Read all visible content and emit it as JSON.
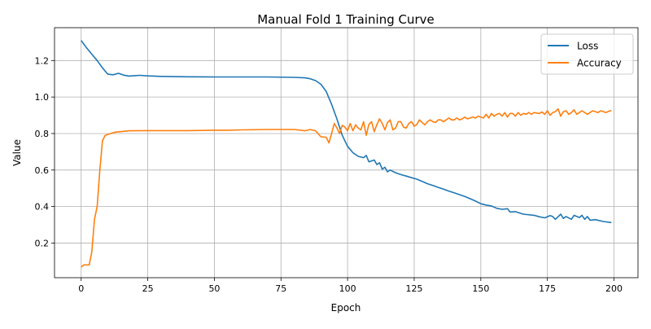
{
  "chart_data": {
    "type": "line",
    "title": "Manual Fold 1 Training Curve",
    "xlabel": "Epoch",
    "ylabel": "Value",
    "xlim": [
      -10,
      209
    ],
    "ylim": [
      0.01,
      1.38
    ],
    "xticks": [
      0,
      25,
      50,
      75,
      100,
      125,
      150,
      175,
      200
    ],
    "yticks": [
      0.2,
      0.4,
      0.6,
      0.8,
      1.0,
      1.2
    ],
    "ytick_labels": [
      "0.2",
      "0.4",
      "0.6",
      "0.8",
      "1.0",
      "1.2"
    ],
    "grid": true,
    "legend_position": "top-right",
    "series": [
      {
        "name": "Loss",
        "color": "#1f77b4",
        "points": [
          [
            0,
            1.31
          ],
          [
            2,
            1.27
          ],
          [
            4,
            1.235
          ],
          [
            6,
            1.2
          ],
          [
            8,
            1.16
          ],
          [
            10,
            1.125
          ],
          [
            12,
            1.122
          ],
          [
            14,
            1.13
          ],
          [
            16,
            1.12
          ],
          [
            18,
            1.115
          ],
          [
            20,
            1.117
          ],
          [
            22,
            1.119
          ],
          [
            25,
            1.116
          ],
          [
            30,
            1.113
          ],
          [
            35,
            1.112
          ],
          [
            40,
            1.111
          ],
          [
            50,
            1.11
          ],
          [
            60,
            1.11
          ],
          [
            70,
            1.11
          ],
          [
            80,
            1.108
          ],
          [
            84,
            1.105
          ],
          [
            86,
            1.1
          ],
          [
            88,
            1.09
          ],
          [
            90,
            1.07
          ],
          [
            92,
            1.03
          ],
          [
            94,
            0.96
          ],
          [
            96,
            0.88
          ],
          [
            98,
            0.79
          ],
          [
            100,
            0.73
          ],
          [
            102,
            0.695
          ],
          [
            104,
            0.675
          ],
          [
            106,
            0.668
          ],
          [
            107,
            0.68
          ],
          [
            108,
            0.645
          ],
          [
            110,
            0.655
          ],
          [
            111,
            0.63
          ],
          [
            112,
            0.64
          ],
          [
            113,
            0.605
          ],
          [
            114,
            0.615
          ],
          [
            115,
            0.59
          ],
          [
            116,
            0.6
          ],
          [
            118,
            0.585
          ],
          [
            120,
            0.575
          ],
          [
            122,
            0.567
          ],
          [
            124,
            0.558
          ],
          [
            126,
            0.55
          ],
          [
            128,
            0.538
          ],
          [
            130,
            0.525
          ],
          [
            132,
            0.515
          ],
          [
            134,
            0.505
          ],
          [
            136,
            0.495
          ],
          [
            138,
            0.485
          ],
          [
            140,
            0.475
          ],
          [
            142,
            0.465
          ],
          [
            144,
            0.455
          ],
          [
            146,
            0.443
          ],
          [
            148,
            0.43
          ],
          [
            150,
            0.415
          ],
          [
            152,
            0.408
          ],
          [
            154,
            0.403
          ],
          [
            156,
            0.39
          ],
          [
            158,
            0.385
          ],
          [
            160,
            0.388
          ],
          [
            161,
            0.37
          ],
          [
            163,
            0.372
          ],
          [
            166,
            0.358
          ],
          [
            170,
            0.352
          ],
          [
            172,
            0.344
          ],
          [
            174,
            0.338
          ],
          [
            176,
            0.35
          ],
          [
            177,
            0.345
          ],
          [
            178,
            0.33
          ],
          [
            180,
            0.358
          ],
          [
            181,
            0.335
          ],
          [
            182,
            0.345
          ],
          [
            184,
            0.33
          ],
          [
            185,
            0.352
          ],
          [
            187,
            0.34
          ],
          [
            188,
            0.352
          ],
          [
            189,
            0.33
          ],
          [
            190,
            0.345
          ],
          [
            191,
            0.325
          ],
          [
            193,
            0.328
          ],
          [
            196,
            0.318
          ],
          [
            199,
            0.312
          ]
        ]
      },
      {
        "name": "Accuracy",
        "color": "#ff7f0e",
        "points": [
          [
            0,
            0.068
          ],
          [
            1,
            0.08
          ],
          [
            3,
            0.08
          ],
          [
            4,
            0.15
          ],
          [
            5,
            0.33
          ],
          [
            6,
            0.4
          ],
          [
            7,
            0.6
          ],
          [
            8,
            0.76
          ],
          [
            9,
            0.79
          ],
          [
            11,
            0.8
          ],
          [
            13,
            0.808
          ],
          [
            16,
            0.812
          ],
          [
            18,
            0.815
          ],
          [
            25,
            0.816
          ],
          [
            40,
            0.816
          ],
          [
            50,
            0.818
          ],
          [
            55,
            0.818
          ],
          [
            60,
            0.82
          ],
          [
            70,
            0.822
          ],
          [
            80,
            0.822
          ],
          [
            84,
            0.815
          ],
          [
            86,
            0.822
          ],
          [
            88,
            0.815
          ],
          [
            90,
            0.782
          ],
          [
            92,
            0.78
          ],
          [
            93,
            0.748
          ],
          [
            94,
            0.8
          ],
          [
            95,
            0.855
          ],
          [
            96,
            0.83
          ],
          [
            97,
            0.8
          ],
          [
            98,
            0.845
          ],
          [
            99,
            0.835
          ],
          [
            100,
            0.815
          ],
          [
            101,
            0.855
          ],
          [
            102,
            0.815
          ],
          [
            103,
            0.848
          ],
          [
            104,
            0.83
          ],
          [
            105,
            0.82
          ],
          [
            106,
            0.865
          ],
          [
            107,
            0.79
          ],
          [
            108,
            0.85
          ],
          [
            109,
            0.865
          ],
          [
            110,
            0.81
          ],
          [
            111,
            0.85
          ],
          [
            112,
            0.88
          ],
          [
            113,
            0.855
          ],
          [
            114,
            0.82
          ],
          [
            115,
            0.86
          ],
          [
            116,
            0.875
          ],
          [
            117,
            0.82
          ],
          [
            118,
            0.83
          ],
          [
            119,
            0.865
          ],
          [
            120,
            0.865
          ],
          [
            121,
            0.835
          ],
          [
            122,
            0.83
          ],
          [
            123,
            0.855
          ],
          [
            124,
            0.865
          ],
          [
            125,
            0.84
          ],
          [
            126,
            0.85
          ],
          [
            127,
            0.875
          ],
          [
            128,
            0.86
          ],
          [
            129,
            0.848
          ],
          [
            130,
            0.865
          ],
          [
            131,
            0.875
          ],
          [
            132,
            0.865
          ],
          [
            133,
            0.86
          ],
          [
            134,
            0.875
          ],
          [
            135,
            0.875
          ],
          [
            136,
            0.865
          ],
          [
            137,
            0.875
          ],
          [
            138,
            0.885
          ],
          [
            139,
            0.875
          ],
          [
            140,
            0.875
          ],
          [
            141,
            0.885
          ],
          [
            142,
            0.875
          ],
          [
            143,
            0.88
          ],
          [
            144,
            0.89
          ],
          [
            145,
            0.88
          ],
          [
            146,
            0.885
          ],
          [
            147,
            0.89
          ],
          [
            148,
            0.885
          ],
          [
            149,
            0.895
          ],
          [
            150,
            0.89
          ],
          [
            151,
            0.885
          ],
          [
            152,
            0.905
          ],
          [
            153,
            0.885
          ],
          [
            154,
            0.91
          ],
          [
            155,
            0.895
          ],
          [
            156,
            0.905
          ],
          [
            157,
            0.91
          ],
          [
            158,
            0.895
          ],
          [
            159,
            0.915
          ],
          [
            160,
            0.89
          ],
          [
            161,
            0.91
          ],
          [
            162,
            0.91
          ],
          [
            163,
            0.895
          ],
          [
            164,
            0.915
          ],
          [
            165,
            0.9
          ],
          [
            166,
            0.91
          ],
          [
            167,
            0.905
          ],
          [
            168,
            0.915
          ],
          [
            169,
            0.905
          ],
          [
            170,
            0.915
          ],
          [
            171,
            0.912
          ],
          [
            172,
            0.91
          ],
          [
            173,
            0.918
          ],
          [
            174,
            0.905
          ],
          [
            175,
            0.925
          ],
          [
            176,
            0.9
          ],
          [
            177,
            0.915
          ],
          [
            178,
            0.92
          ],
          [
            179,
            0.935
          ],
          [
            180,
            0.895
          ],
          [
            181,
            0.92
          ],
          [
            182,
            0.925
          ],
          [
            183,
            0.905
          ],
          [
            184,
            0.915
          ],
          [
            185,
            0.93
          ],
          [
            186,
            0.905
          ],
          [
            187,
            0.915
          ],
          [
            188,
            0.925
          ],
          [
            189,
            0.915
          ],
          [
            190,
            0.905
          ],
          [
            191,
            0.915
          ],
          [
            192,
            0.925
          ],
          [
            193,
            0.92
          ],
          [
            194,
            0.915
          ],
          [
            195,
            0.925
          ],
          [
            196,
            0.92
          ],
          [
            197,
            0.915
          ],
          [
            198,
            0.922
          ],
          [
            199,
            0.926
          ]
        ]
      }
    ]
  }
}
